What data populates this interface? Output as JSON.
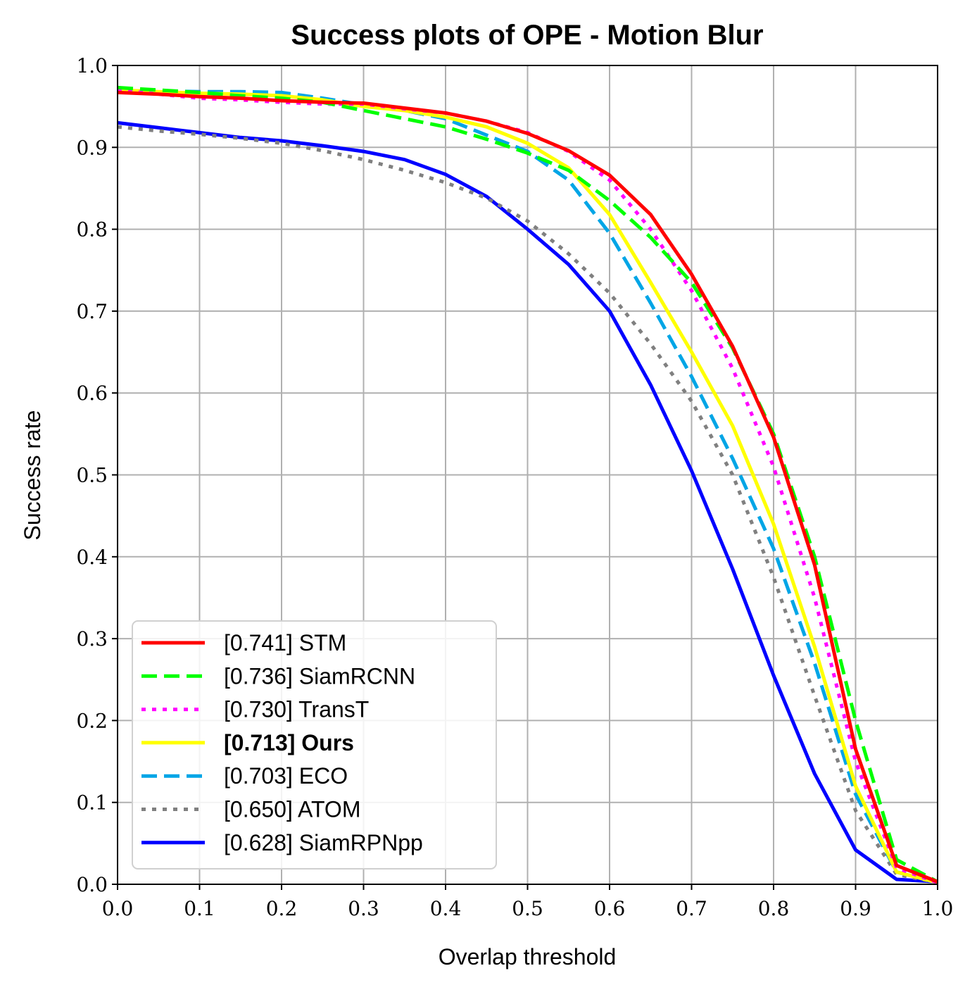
{
  "chart_data": {
    "type": "line",
    "title": "Success plots of OPE - Motion Blur",
    "xlabel": "Overlap threshold",
    "ylabel": "Success rate",
    "xlim": [
      0.0,
      1.0
    ],
    "ylim": [
      0.0,
      1.0
    ],
    "grid": true,
    "legend_position": "lower-left",
    "x_ticks": [
      "0.0",
      "0.1",
      "0.2",
      "0.3",
      "0.4",
      "0.5",
      "0.6",
      "0.7",
      "0.8",
      "0.9",
      "1.0"
    ],
    "y_ticks": [
      "0.0",
      "0.1",
      "0.2",
      "0.3",
      "0.4",
      "0.5",
      "0.6",
      "0.7",
      "0.8",
      "0.9",
      "1.0"
    ],
    "x": [
      0.0,
      0.05,
      0.1,
      0.15,
      0.2,
      0.25,
      0.3,
      0.35,
      0.4,
      0.45,
      0.5,
      0.55,
      0.6,
      0.65,
      0.7,
      0.75,
      0.8,
      0.85,
      0.9,
      0.95,
      1.0
    ],
    "series": [
      {
        "name": "[0.741] STM",
        "color": "#ff0000",
        "style": "solid",
        "bold": false,
        "values": [
          0.967,
          0.965,
          0.962,
          0.96,
          0.957,
          0.955,
          0.954,
          0.948,
          0.942,
          0.932,
          0.917,
          0.896,
          0.866,
          0.818,
          0.745,
          0.657,
          0.546,
          0.39,
          0.165,
          0.023,
          0.003
        ]
      },
      {
        "name": "[0.736] SiamRCNN",
        "color": "#00ff00",
        "style": "dashed",
        "bold": false,
        "values": [
          0.973,
          0.97,
          0.967,
          0.963,
          0.96,
          0.955,
          0.945,
          0.935,
          0.925,
          0.91,
          0.893,
          0.872,
          0.835,
          0.79,
          0.735,
          0.655,
          0.55,
          0.4,
          0.2,
          0.03,
          0.003
        ]
      },
      {
        "name": "[0.730] TransT",
        "color": "#ff00ff",
        "style": "dotted",
        "bold": false,
        "values": [
          0.97,
          0.965,
          0.96,
          0.958,
          0.955,
          0.953,
          0.953,
          0.947,
          0.942,
          0.932,
          0.918,
          0.895,
          0.86,
          0.8,
          0.725,
          0.63,
          0.51,
          0.35,
          0.15,
          0.02,
          0.002
        ]
      },
      {
        "name": "[0.713] Ours",
        "color": "#ffff00",
        "style": "solid",
        "bold": true,
        "values": [
          0.97,
          0.968,
          0.966,
          0.965,
          0.963,
          0.958,
          0.95,
          0.945,
          0.937,
          0.925,
          0.905,
          0.875,
          0.818,
          0.735,
          0.65,
          0.56,
          0.44,
          0.29,
          0.12,
          0.015,
          0.002
        ]
      },
      {
        "name": "[0.703] ECO",
        "color": "#00a5e6",
        "style": "dashed",
        "bold": false,
        "values": [
          0.97,
          0.969,
          0.968,
          0.968,
          0.967,
          0.96,
          0.952,
          0.945,
          0.935,
          0.915,
          0.895,
          0.86,
          0.795,
          0.71,
          0.62,
          0.52,
          0.41,
          0.27,
          0.11,
          0.015,
          0.002
        ]
      },
      {
        "name": "[0.650] ATOM",
        "color": "#808080",
        "style": "dotted",
        "bold": false,
        "values": [
          0.925,
          0.92,
          0.916,
          0.911,
          0.905,
          0.896,
          0.885,
          0.872,
          0.857,
          0.838,
          0.81,
          0.77,
          0.722,
          0.66,
          0.59,
          0.5,
          0.375,
          0.23,
          0.09,
          0.012,
          0.002
        ]
      },
      {
        "name": "[0.628] SiamRPNpp",
        "color": "#0000ff",
        "style": "solid",
        "bold": false,
        "values": [
          0.93,
          0.924,
          0.918,
          0.912,
          0.908,
          0.902,
          0.895,
          0.885,
          0.867,
          0.84,
          0.8,
          0.757,
          0.7,
          0.61,
          0.505,
          0.385,
          0.255,
          0.135,
          0.042,
          0.006,
          0.003
        ]
      }
    ]
  }
}
